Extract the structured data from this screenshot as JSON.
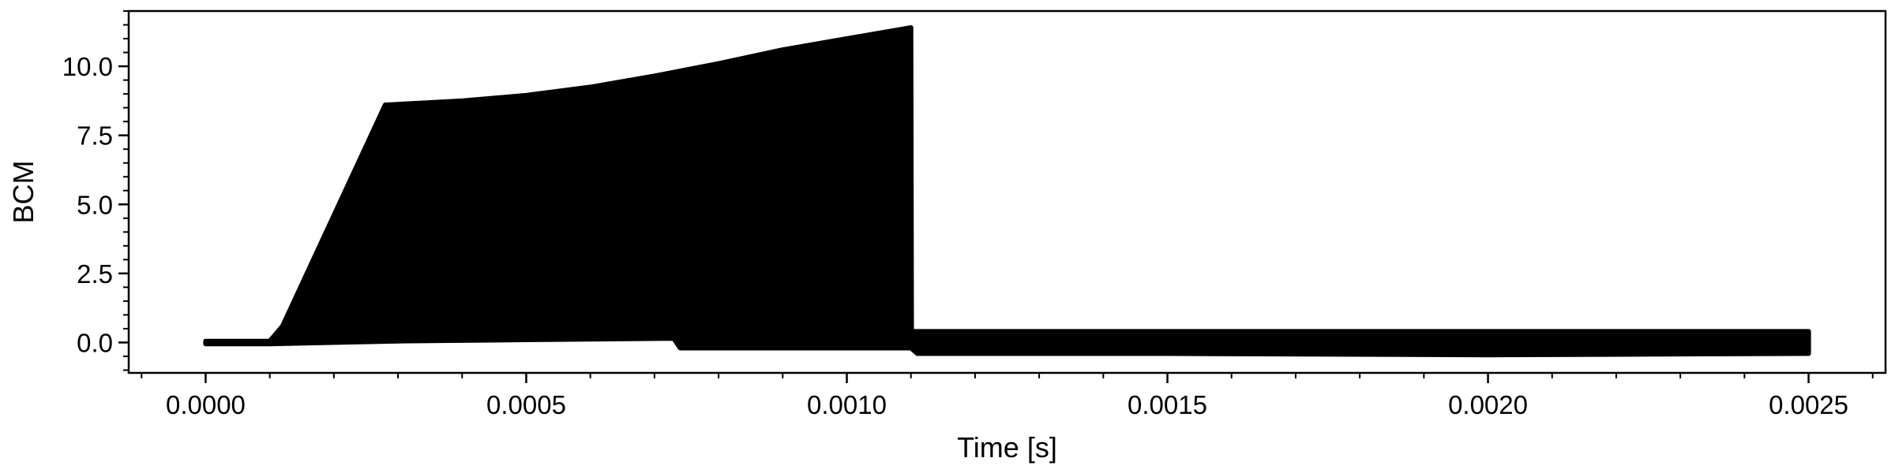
{
  "chart_data": {
    "type": "area",
    "title": "",
    "xlabel": "Time [s]",
    "ylabel": "BCM",
    "xlim": [
      -0.00012,
      0.00262
    ],
    "ylim": [
      -1.1,
      12
    ],
    "grid": false,
    "x_ticks": [
      0.0,
      0.0005,
      0.001,
      0.0015,
      0.002,
      0.0025
    ],
    "x_tick_labels": [
      "0.0000",
      "0.0005",
      "0.0010",
      "0.0015",
      "0.0020",
      "0.0025"
    ],
    "y_ticks": [
      0.0,
      2.5,
      5.0,
      7.5,
      10.0
    ],
    "y_tick_labels": [
      "0.0",
      "2.5",
      "5.0",
      "7.5",
      "10.0"
    ],
    "series": [
      {
        "color": "#000000",
        "upper_envelope": {
          "x": [
            0.0,
            0.0001,
            0.00012,
            0.00028,
            0.0004,
            0.0005,
            0.0006,
            0.0007,
            0.0008,
            0.0009,
            0.001,
            0.0011,
            0.001101,
            0.0012,
            0.0015,
            0.002,
            0.0025
          ],
          "y": [
            0.05,
            0.05,
            0.6,
            8.6,
            8.75,
            8.95,
            9.25,
            9.65,
            10.1,
            10.6,
            11.0,
            11.4,
            0.4,
            0.4,
            0.4,
            0.4,
            0.4
          ]
        },
        "lower_envelope": {
          "x": [
            0.0,
            0.0001,
            0.0003,
            0.0005,
            0.00073,
            0.00074,
            0.0009,
            0.0011,
            0.00111,
            0.0015,
            0.002,
            0.0025
          ],
          "y": [
            -0.05,
            -0.05,
            0.05,
            0.1,
            0.15,
            -0.2,
            -0.2,
            -0.2,
            -0.4,
            -0.4,
            -0.45,
            -0.4
          ]
        }
      }
    ]
  }
}
